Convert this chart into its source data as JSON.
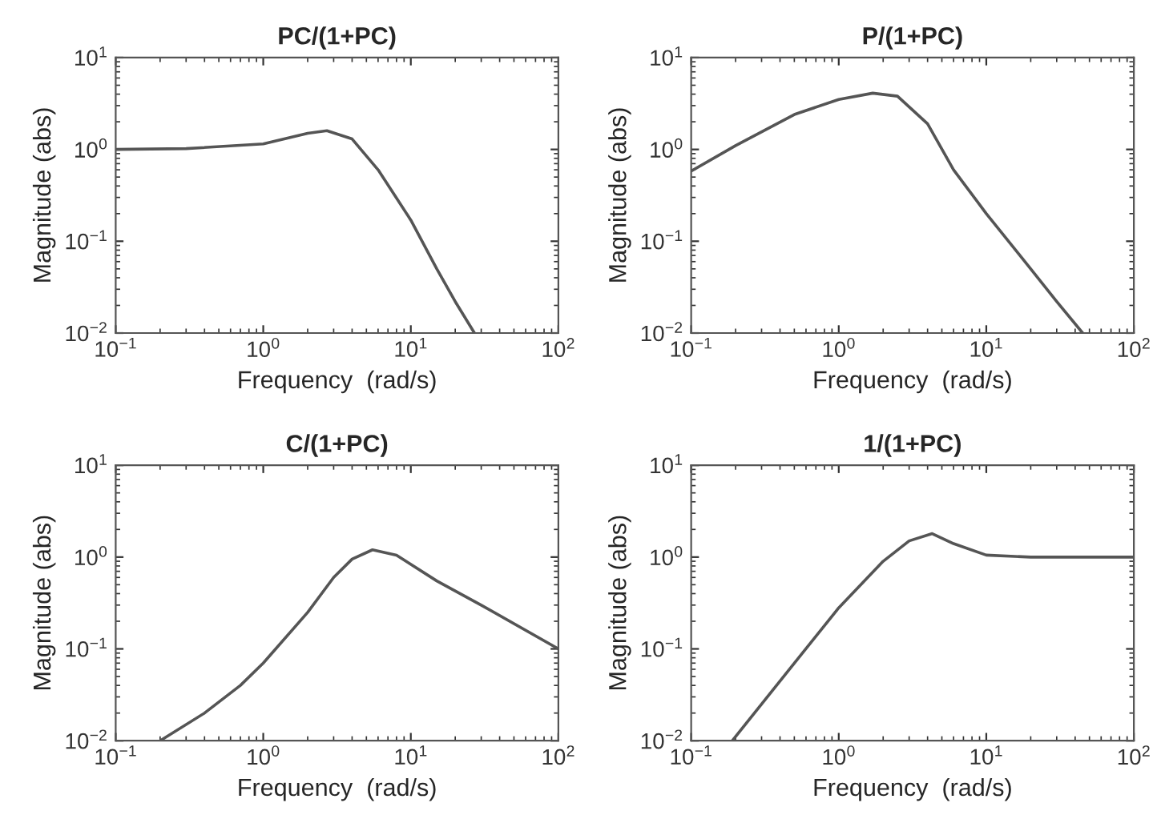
{
  "chart_data": [
    {
      "type": "line",
      "title": "PC/(1+PC)",
      "xlabel": "Frequency  (rad/s)",
      "ylabel": "Magnitude (abs)",
      "log": "xy",
      "grid": false,
      "line_style": "solid",
      "xlim": [
        0.1,
        100
      ],
      "ylim": [
        0.01,
        10
      ],
      "xticks": [
        {
          "value": 0.1,
          "label": "10$^{−1}$"
        },
        {
          "value": 1,
          "label": "10$^{0}$"
        },
        {
          "value": 10,
          "label": "10$^{1}$"
        },
        {
          "value": 100,
          "label": "10$^{2}$"
        }
      ],
      "yticks": [
        {
          "value": 0.01,
          "label": "10$^{−2}$"
        },
        {
          "value": 0.1,
          "label": "10$^{−1}$"
        },
        {
          "value": 1,
          "label": "10$^{0}$"
        },
        {
          "value": 10,
          "label": "10$^{1}$"
        }
      ],
      "series": [
        {
          "color": "#555555",
          "x": [
            0.1,
            0.3,
            1,
            2,
            2.7,
            4,
            6,
            10,
            15,
            20,
            27
          ],
          "values": [
            1.0,
            1.02,
            1.15,
            1.5,
            1.6,
            1.3,
            0.6,
            0.17,
            0.05,
            0.022,
            0.01
          ]
        }
      ]
    },
    {
      "type": "line",
      "title": "P/(1+PC)",
      "xlabel": "Frequency  (rad/s)",
      "ylabel": "Magnitude (abs)",
      "log": "xy",
      "grid": false,
      "line_style": "solid",
      "xlim": [
        0.1,
        100
      ],
      "ylim": [
        0.01,
        10
      ],
      "xticks": [
        {
          "value": 0.1,
          "label": "10$^{−1}$"
        },
        {
          "value": 1,
          "label": "10$^{0}$"
        },
        {
          "value": 10,
          "label": "10$^{1}$"
        },
        {
          "value": 100,
          "label": "10$^{2}$"
        }
      ],
      "yticks": [
        {
          "value": 0.01,
          "label": "10$^{−2}$"
        },
        {
          "value": 0.1,
          "label": "10$^{−1}$"
        },
        {
          "value": 1,
          "label": "10$^{0}$"
        },
        {
          "value": 10,
          "label": "10$^{1}$"
        }
      ],
      "series": [
        {
          "color": "#555555",
          "x": [
            0.1,
            0.2,
            0.5,
            1,
            1.7,
            2.5,
            4,
            6,
            10,
            20,
            30,
            45
          ],
          "values": [
            0.58,
            1.1,
            2.4,
            3.5,
            4.1,
            3.8,
            1.9,
            0.6,
            0.2,
            0.05,
            0.022,
            0.01
          ]
        }
      ]
    },
    {
      "type": "line",
      "title": "C/(1+PC)",
      "xlabel": "Frequency  (rad/s)",
      "ylabel": "Magnitude (abs)",
      "log": "xy",
      "grid": false,
      "line_style": "solid",
      "xlim": [
        0.1,
        100
      ],
      "ylim": [
        0.01,
        10
      ],
      "xticks": [
        {
          "value": 0.1,
          "label": "10$^{−1}$"
        },
        {
          "value": 1,
          "label": "10$^{0}$"
        },
        {
          "value": 10,
          "label": "10$^{1}$"
        },
        {
          "value": 100,
          "label": "10$^{2}$"
        }
      ],
      "yticks": [
        {
          "value": 0.01,
          "label": "10$^{−2}$"
        },
        {
          "value": 0.1,
          "label": "10$^{−1}$"
        },
        {
          "value": 1,
          "label": "10$^{0}$"
        },
        {
          "value": 10,
          "label": "10$^{1}$"
        }
      ],
      "series": [
        {
          "color": "#555555",
          "x": [
            0.2,
            0.4,
            0.7,
            1,
            2,
            3,
            4,
            5.5,
            8,
            15,
            30,
            100
          ],
          "values": [
            0.01,
            0.02,
            0.04,
            0.07,
            0.25,
            0.6,
            0.95,
            1.2,
            1.05,
            0.55,
            0.3,
            0.1
          ]
        }
      ]
    },
    {
      "type": "line",
      "title": "1/(1+PC)",
      "xlabel": "Frequency  (rad/s)",
      "ylabel": "Magnitude (abs)",
      "log": "xy",
      "grid": false,
      "line_style": "solid",
      "xlim": [
        0.1,
        100
      ],
      "ylim": [
        0.01,
        10
      ],
      "xticks": [
        {
          "value": 0.1,
          "label": "10$^{−1}$"
        },
        {
          "value": 1,
          "label": "10$^{0}$"
        },
        {
          "value": 10,
          "label": "10$^{1}$"
        },
        {
          "value": 100,
          "label": "10$^{2}$"
        }
      ],
      "yticks": [
        {
          "value": 0.01,
          "label": "10$^{−2}$"
        },
        {
          "value": 0.1,
          "label": "10$^{−1}$"
        },
        {
          "value": 1,
          "label": "10$^{0}$"
        },
        {
          "value": 10,
          "label": "10$^{1}$"
        }
      ],
      "series": [
        {
          "color": "#555555",
          "x": [
            0.19,
            0.5,
            1,
            2,
            3,
            4.3,
            6,
            10,
            20,
            100
          ],
          "values": [
            0.01,
            0.07,
            0.28,
            0.9,
            1.5,
            1.8,
            1.4,
            1.05,
            1.0,
            1.0
          ]
        }
      ]
    }
  ]
}
